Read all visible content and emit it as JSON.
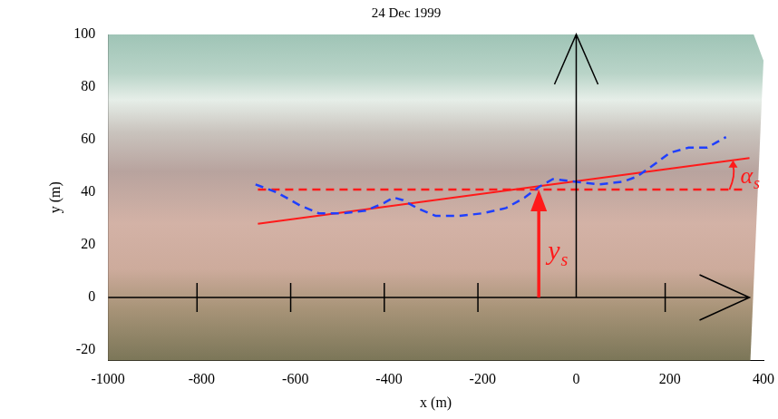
{
  "chart_data": {
    "type": "line",
    "title": "24 Dec 1999",
    "x_label": "x (m)",
    "y_label": "y (m)",
    "xlim": [
      -1000,
      400
    ],
    "xticks": [
      -1000,
      -800,
      -600,
      -400,
      -200,
      0,
      200,
      400
    ],
    "ylim": [
      -24,
      100
    ],
    "yticks": [
      -20,
      0,
      20,
      40,
      60,
      80,
      100
    ],
    "grid": false,
    "series": [
      {
        "color": "#1f3fff",
        "line_style": "dashed",
        "x": [
          -685,
          -640,
          -590,
          -550,
          -500,
          -450,
          -410,
          -390,
          -370,
          -340,
          -300,
          -250,
          -200,
          -150,
          -110,
          -80,
          -50,
          0,
          50,
          100,
          130,
          170,
          200,
          240,
          280,
          300,
          320
        ],
        "values": [
          43,
          40,
          35,
          32,
          32,
          33,
          36,
          38,
          37,
          34,
          31,
          31,
          32,
          34,
          38,
          42,
          45,
          44,
          43,
          44,
          46,
          51,
          55,
          57,
          57,
          59,
          61
        ]
      },
      {
        "color": "#ff1a1a",
        "line_style": "solid",
        "x": [
          -680,
          370
        ],
        "values": [
          28,
          53
        ]
      },
      {
        "color": "#ff1a1a",
        "line_style": "dashed",
        "x": [
          -680,
          365
        ],
        "values": [
          41,
          41
        ]
      }
    ],
    "reference_axes": {
      "color": "#000000",
      "x_axis": {
        "x": [
          -1000,
          370
        ],
        "y": 0,
        "tick_marks": [
          -810,
          -610,
          -410,
          -210,
          190
        ]
      },
      "y_axis": {
        "x": 0,
        "y": [
          0,
          100
        ]
      }
    },
    "annotations": [
      {
        "text": "y",
        "sub": "s",
        "color": "#ff1a1a",
        "x": -80,
        "y_from": 0,
        "y_to": 41
      },
      {
        "text": "α",
        "sub": "s",
        "color": "#ff1a1a",
        "x": 335
      }
    ]
  }
}
